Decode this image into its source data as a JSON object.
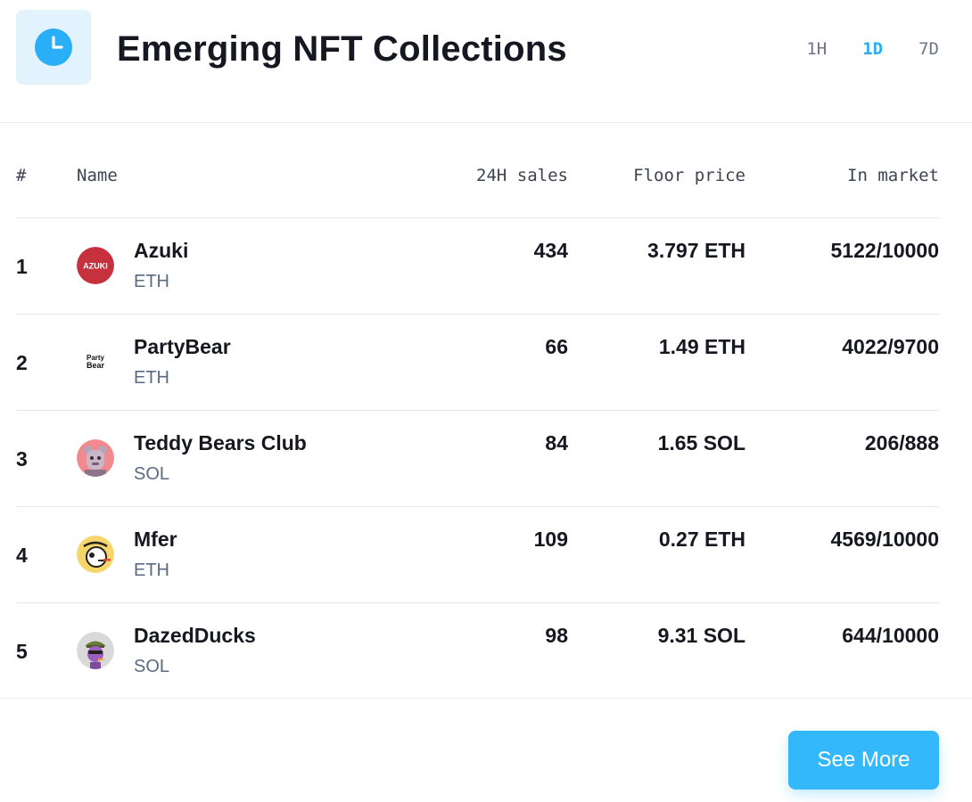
{
  "header": {
    "title": "Emerging NFT Collections",
    "icon": "clock-icon",
    "accent_color": "#29aef7",
    "periods": [
      {
        "label": "1H",
        "active": false
      },
      {
        "label": "1D",
        "active": true
      },
      {
        "label": "7D",
        "active": false
      }
    ]
  },
  "table": {
    "columns": {
      "rank": "#",
      "name": "Name",
      "sales": "24H sales",
      "floor": "Floor price",
      "market": "In market"
    },
    "rows": [
      {
        "rank": "1",
        "name": "Azuki",
        "chain": "ETH",
        "sales": "434",
        "floor": "3.797 ETH",
        "market": "5122/10000",
        "avatar": "azuki-logo-icon",
        "logo_text": "AZUKI"
      },
      {
        "rank": "2",
        "name": "PartyBear",
        "chain": "ETH",
        "sales": "66",
        "floor": "1.49 ETH",
        "market": "4022/9700",
        "avatar": "partybear-logo-icon",
        "logo_text": "Party Bear"
      },
      {
        "rank": "3",
        "name": "Teddy Bears Club",
        "chain": "SOL",
        "sales": "84",
        "floor": "1.65 SOL",
        "market": "206/888",
        "avatar": "teddy-bear-avatar-icon"
      },
      {
        "rank": "4",
        "name": "Mfer",
        "chain": "ETH",
        "sales": "109",
        "floor": "0.27 ETH",
        "market": "4569/10000",
        "avatar": "mfer-avatar-icon"
      },
      {
        "rank": "5",
        "name": "DazedDucks",
        "chain": "SOL",
        "sales": "98",
        "floor": "9.31 SOL",
        "market": "644/10000",
        "avatar": "dazed-duck-avatar-icon"
      }
    ]
  },
  "footer": {
    "see_more_label": "See More",
    "button_color": "#33b9fb"
  }
}
